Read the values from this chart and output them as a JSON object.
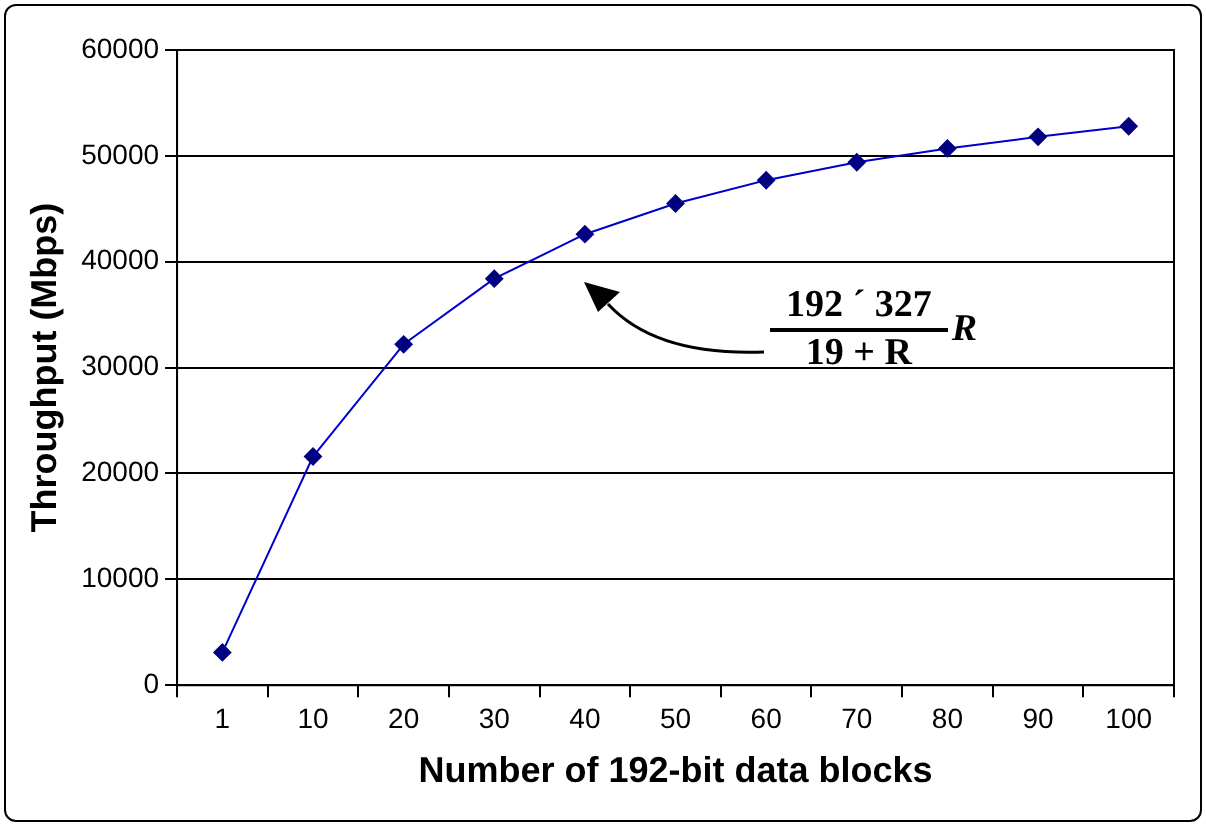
{
  "chart_data": {
    "type": "line",
    "xlabel": "Number of 192-bit data blocks",
    "ylabel": "Throughput (Mbps)",
    "categories": [
      "1",
      "10",
      "20",
      "30",
      "40",
      "50",
      "60",
      "70",
      "80",
      "90",
      "100"
    ],
    "values": [
      3100,
      21600,
      32200,
      38400,
      42600,
      45500,
      47700,
      49400,
      50700,
      51800,
      52800
    ],
    "color": "#000080",
    "marker": "diamond",
    "line_style": "solid",
    "ylim": [
      0,
      60000
    ],
    "yticks": [
      0,
      10000,
      20000,
      30000,
      40000,
      50000,
      60000
    ],
    "grid": "y",
    "legend": false,
    "annotations": [
      "192 ´ 327",
      "R",
      "19 + R"
    ]
  }
}
